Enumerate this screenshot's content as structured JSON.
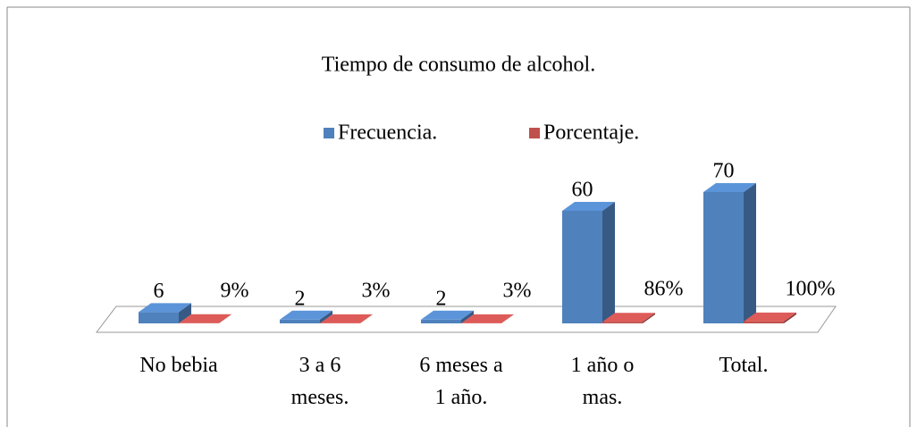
{
  "chart_data": {
    "type": "bar3d",
    "title": "Tiempo de consumo de alcohol.",
    "categories": [
      "No bebia",
      "3 a 6 meses.",
      "6 meses a 1 año.",
      "1 año o mas.",
      "Total."
    ],
    "series": [
      {
        "name": "Frecuencia.",
        "color": "#4f81bd",
        "values": [
          6,
          2,
          2,
          60,
          70
        ]
      },
      {
        "name": "Porcentaje.",
        "color": "#c0504d",
        "values": [
          0.09,
          0.03,
          0.03,
          0.86,
          1
        ],
        "value_labels": [
          "9%",
          "3%",
          "3%",
          "86%",
          "100%"
        ]
      }
    ],
    "ylim": [
      0,
      80
    ],
    "legend": "top"
  }
}
